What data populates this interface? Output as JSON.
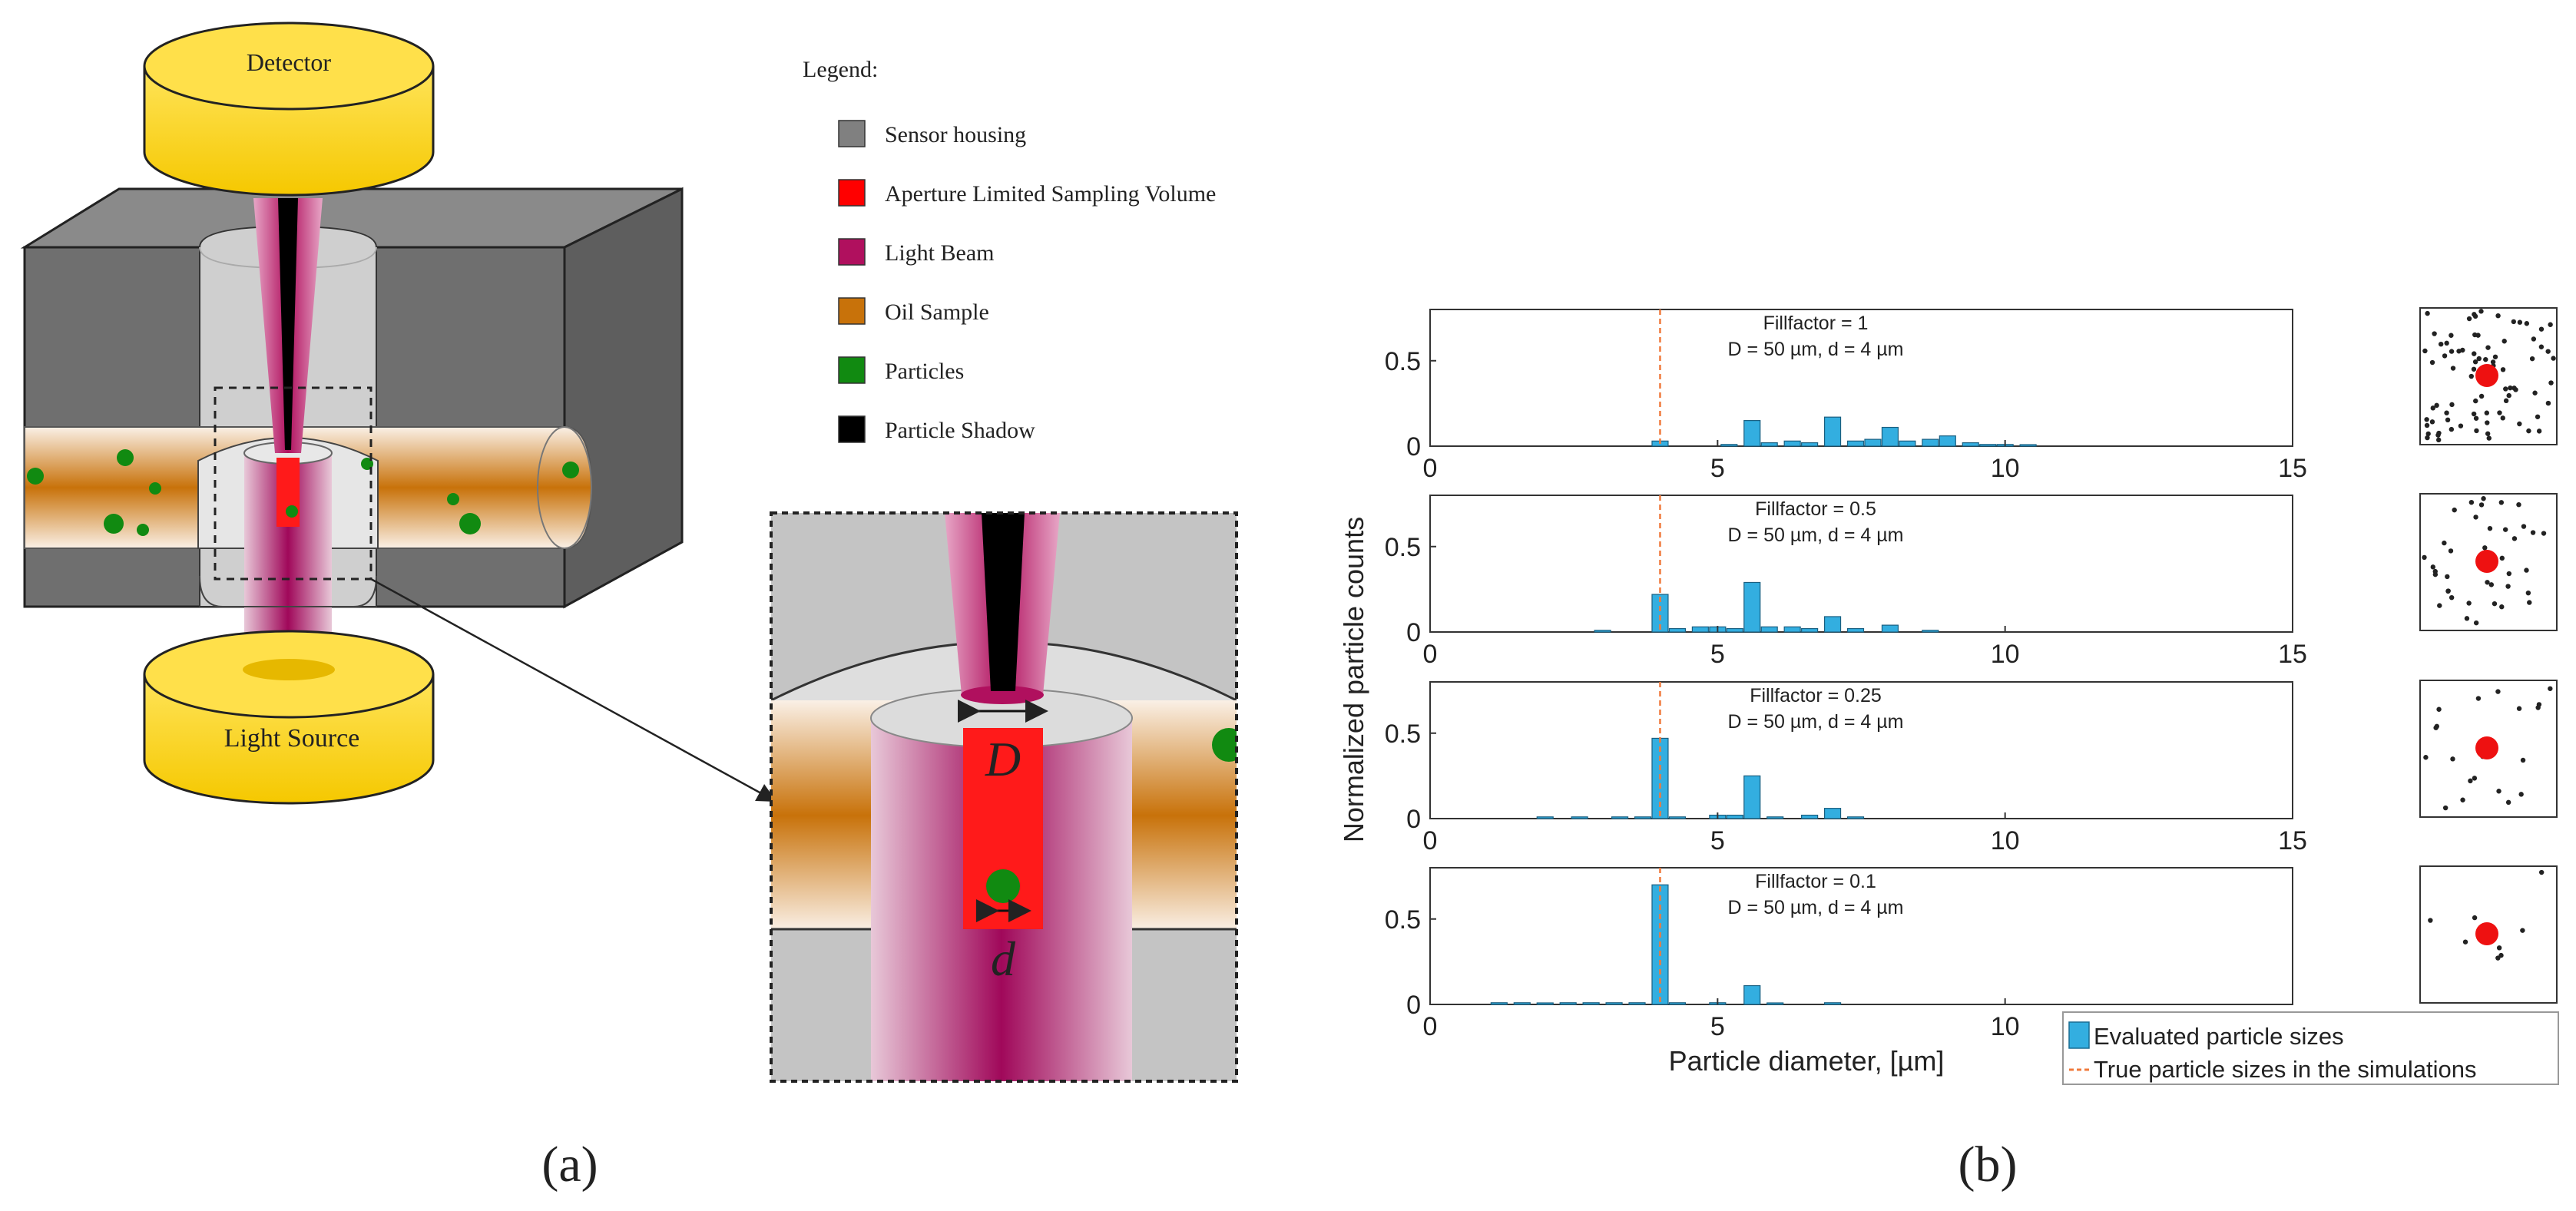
{
  "panel_a": {
    "caption": "(a)",
    "detector_label": "Detector",
    "light_source_label": "Light Source",
    "aperture_symbol": "D",
    "particle_symbol": "d",
    "legend": {
      "title": "Legend:",
      "items": [
        {
          "label": "Sensor housing",
          "color": "#808080"
        },
        {
          "label": "Aperture Limited Sampling Volume",
          "color": "#ff0000"
        },
        {
          "label": "Light Beam",
          "color": "#b0105e"
        },
        {
          "label": "Oil Sample",
          "color": "#c8720a"
        },
        {
          "label": "Particles",
          "color": "#118a11"
        },
        {
          "label": "Particle Shadow",
          "color": "#000000"
        }
      ]
    }
  },
  "panel_b": {
    "caption": "(b)",
    "ylabel": "Normalized particle counts",
    "xlabel": "Particle diameter, [µm]",
    "legend": {
      "bars_label": "Evaluated particle sizes",
      "line_label": "True particle sizes in the simulations"
    },
    "colors": {
      "bar": "#33aee0",
      "true_line": "#f07a3c",
      "dot": "#ee1111"
    }
  },
  "chart_data": [
    {
      "type": "bar",
      "title": "Fillfactor = 1",
      "subtitle": "D = 50 µm, d = 4 µm",
      "xlim": [
        0,
        15
      ],
      "ylim": [
        0,
        0.8
      ],
      "xticks": [
        0,
        5,
        10,
        15
      ],
      "yticks": [
        0,
        0.5
      ],
      "true_size": 4,
      "x": [
        4.0,
        5.2,
        5.6,
        5.9,
        6.3,
        6.6,
        7.0,
        7.4,
        7.7,
        8.0,
        8.3,
        8.7,
        9.0,
        9.4,
        9.7,
        10.0,
        10.4
      ],
      "values": [
        0.03,
        0.01,
        0.15,
        0.02,
        0.03,
        0.02,
        0.17,
        0.03,
        0.04,
        0.11,
        0.03,
        0.04,
        0.06,
        0.02,
        0.01,
        0.01,
        0.005
      ],
      "xlabel": "",
      "ylabel": ""
    },
    {
      "type": "bar",
      "title": "Fillfactor = 0.5",
      "subtitle": "D = 50 µm, d = 4 µm",
      "xlim": [
        0,
        15
      ],
      "ylim": [
        0,
        0.8
      ],
      "xticks": [
        0,
        5,
        10,
        15
      ],
      "yticks": [
        0,
        0.5
      ],
      "true_size": 4,
      "x": [
        3.0,
        4.0,
        4.3,
        4.7,
        5.0,
        5.3,
        5.6,
        5.9,
        6.3,
        6.6,
        7.0,
        7.4,
        8.0,
        8.7
      ],
      "values": [
        0.01,
        0.22,
        0.02,
        0.03,
        0.03,
        0.02,
        0.29,
        0.03,
        0.03,
        0.02,
        0.09,
        0.02,
        0.04,
        0.01
      ],
      "xlabel": "",
      "ylabel": ""
    },
    {
      "type": "bar",
      "title": "Fillfactor = 0.25",
      "subtitle": "D = 50 µm, d = 4 µm",
      "xlim": [
        0,
        15
      ],
      "ylim": [
        0,
        0.8
      ],
      "xticks": [
        0,
        5,
        10,
        15
      ],
      "yticks": [
        0,
        0.5
      ],
      "true_size": 4,
      "x": [
        2.0,
        2.6,
        3.3,
        3.7,
        4.0,
        4.3,
        5.0,
        5.3,
        5.6,
        6.0,
        6.6,
        7.0,
        7.4
      ],
      "values": [
        0.01,
        0.01,
        0.01,
        0.01,
        0.47,
        0.01,
        0.02,
        0.02,
        0.25,
        0.01,
        0.02,
        0.06,
        0.01
      ],
      "xlabel": "",
      "ylabel": ""
    },
    {
      "type": "bar",
      "title": "Fillfactor = 0.1",
      "subtitle": "D = 50 µm, d = 4 µm",
      "xlim": [
        0,
        15
      ],
      "ylim": [
        0,
        0.8
      ],
      "xticks": [
        0,
        5,
        10
      ],
      "yticks": [
        0,
        0.5
      ],
      "true_size": 4,
      "x": [
        1.2,
        1.6,
        2.0,
        2.4,
        2.8,
        3.2,
        3.6,
        4.0,
        4.3,
        5.0,
        5.6,
        6.0,
        7.0
      ],
      "values": [
        0.01,
        0.01,
        0.005,
        0.01,
        0.01,
        0.01,
        0.01,
        0.7,
        0.01,
        0.01,
        0.11,
        0.005,
        0.01
      ],
      "xlabel": "",
      "ylabel": ""
    }
  ]
}
